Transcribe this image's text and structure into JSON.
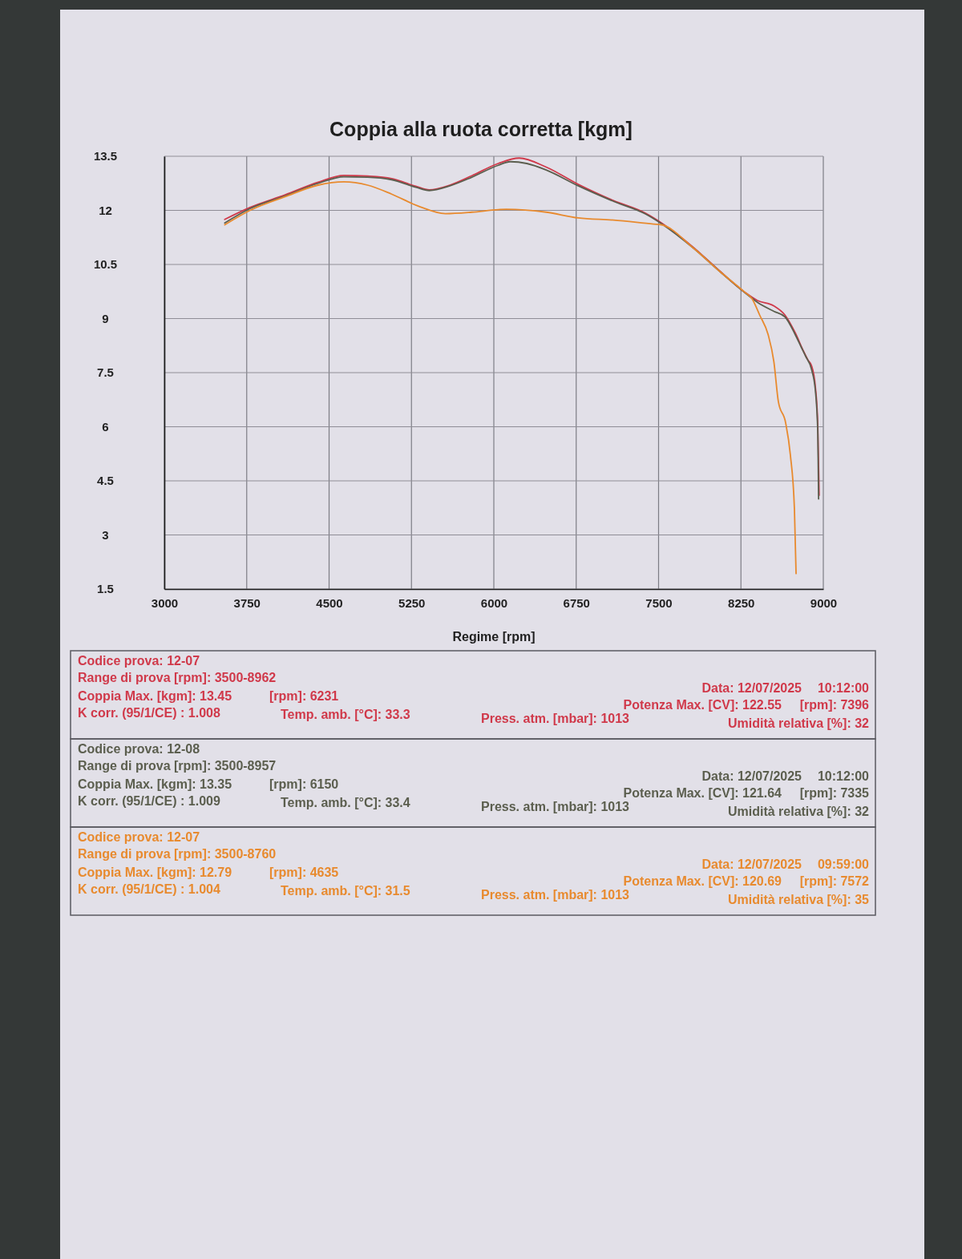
{
  "chart_data": {
    "type": "line",
    "title": "Coppia alla ruota corretta [kgm]",
    "xlabel": "Regime [rpm]",
    "xlim": [
      3000,
      9000
    ],
    "xticks": [
      3000,
      3750,
      4500,
      5250,
      6000,
      6750,
      7500,
      8250,
      9000
    ],
    "ylim": [
      1.5,
      13.5
    ],
    "yticks": [
      1.5,
      3,
      4.5,
      6,
      7.5,
      9,
      10.5,
      12,
      13.5
    ],
    "grid": true,
    "series": [
      {
        "color": "#d0394a",
        "x": [
          3550,
          3780,
          4100,
          4400,
          4635,
          4850,
          5070,
          5290,
          5413,
          5600,
          5800,
          6040,
          6231,
          6477,
          6769,
          7090,
          7381,
          7527,
          7819,
          8060,
          8285,
          8400,
          8550,
          8650,
          8745,
          8819,
          8860,
          8892,
          8928,
          8950,
          8962
        ],
        "values": [
          11.75,
          12.08,
          12.43,
          12.78,
          12.97,
          12.95,
          12.88,
          12.67,
          12.57,
          12.7,
          12.96,
          13.3,
          13.45,
          13.2,
          12.72,
          12.27,
          11.92,
          11.65,
          10.97,
          10.31,
          9.73,
          9.5,
          9.35,
          9.1,
          8.6,
          8.1,
          7.85,
          7.7,
          7.1,
          6.0,
          4.1
        ]
      },
      {
        "color": "#5b5e4e",
        "x": [
          3550,
          3780,
          4100,
          4400,
          4635,
          4850,
          5070,
          5290,
          5413,
          5600,
          5800,
          6040,
          6150,
          6300,
          6477,
          6769,
          7090,
          7381,
          7527,
          7819,
          8060,
          8285,
          8400,
          8550,
          8650,
          8745,
          8800,
          8840,
          8892,
          8928,
          8950,
          8957
        ],
        "values": [
          11.65,
          12.05,
          12.4,
          12.75,
          12.93,
          12.92,
          12.85,
          12.64,
          12.55,
          12.68,
          12.92,
          13.25,
          13.35,
          13.3,
          13.12,
          12.68,
          12.25,
          11.9,
          11.63,
          10.95,
          10.3,
          9.72,
          9.45,
          9.2,
          9.05,
          8.55,
          8.2,
          7.95,
          7.6,
          7.0,
          5.8,
          4.0
        ]
      },
      {
        "color": "#e88a2e",
        "x": [
          3550,
          3780,
          4100,
          4400,
          4635,
          4850,
          5070,
          5311,
          5560,
          5800,
          6040,
          6113,
          6477,
          6769,
          7090,
          7454,
          7527,
          7819,
          8060,
          8285,
          8351,
          8420,
          8497,
          8550,
          8591,
          8657,
          8700,
          8737,
          8752
        ],
        "values": [
          11.6,
          12.0,
          12.38,
          12.7,
          12.79,
          12.7,
          12.45,
          12.12,
          11.91,
          11.95,
          12.02,
          12.03,
          11.95,
          11.79,
          11.73,
          11.62,
          11.6,
          10.95,
          10.3,
          9.73,
          9.55,
          9.1,
          8.56,
          7.8,
          6.69,
          6.11,
          5.22,
          3.72,
          1.93
        ]
      }
    ],
    "annotations": [
      "Codice prova: 12-07",
      "Range di prova [rpm]: 3500-8962",
      "Data: 12/07/2025",
      "10:12:00",
      "Coppia Max. [kgm]: 13.45",
      "[rpm]: 6231",
      "Potenza Max. [CV]: 122.55",
      "[rpm]: 7396",
      "K corr. (95/1/CE) : 1.008",
      "Temp. amb. [°C]: 33.3",
      "Press. atm. [mbar]: 1013",
      "Umidità relativa [%]: 32",
      "Codice prova: 12-08",
      "Range di prova [rpm]: 3500-8957",
      "Data: 12/07/2025",
      "10:12:00",
      "Coppia Max. [kgm]: 13.35",
      "[rpm]: 6150",
      "Potenza Max. [CV]: 121.64",
      "[rpm]: 7335",
      "K corr. (95/1/CE) : 1.009",
      "Temp. amb. [°C]: 33.4",
      "Press. atm. [mbar]: 1013",
      "Umidità relativa [%]: 32",
      "Codice prova: 12-07",
      "Range di prova [rpm]: 3500-8760",
      "Data: 12/07/2025",
      "09:59:00",
      "Coppia Max. [kgm]: 12.79",
      "[rpm]: 4635",
      "Potenza Max. [CV]: 120.69",
      "[rpm]: 7572",
      "K corr. (95/1/CE) : 1.004",
      "Temp. amb. [°C]: 31.5",
      "Press. atm. [mbar]: 1013",
      "Umidità relativa [%]: 35"
    ]
  }
}
